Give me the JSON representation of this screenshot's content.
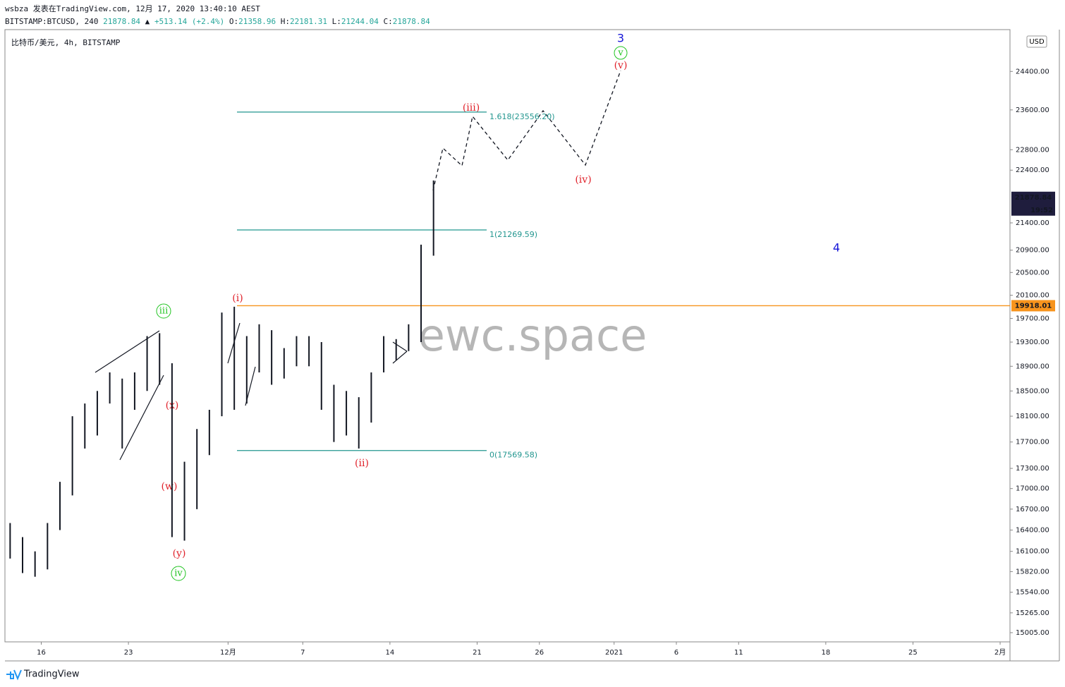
{
  "chart_data": {
    "type": "range-bar",
    "header": "wsbza 发表在TradingView.com, 12月 17, 2020 13:40:10 AEST",
    "ohlc_line": [
      "BITSTAMP:BTCUSD, 240 ",
      "21878.84",
      " ▲ ",
      "+513.14 (+2.4%)",
      " O:",
      "21358.96",
      " H:",
      "22181.31",
      " L:",
      "21244.04",
      " C:",
      "21878.84"
    ],
    "symbol": "比特币/美元, 4h, BITSTAMP",
    "currency": "USD",
    "watermark": "ewc.space",
    "footer": "TradingView",
    "color": "#131722",
    "log_scale": true,
    "x": [
      "2020-11-13",
      "2020-11-14",
      "2020-11-15",
      "2020-11-16",
      "2020-11-17",
      "2020-11-18",
      "2020-11-19",
      "2020-11-20",
      "2020-11-21",
      "2020-11-22",
      "2020-11-23",
      "2020-11-24",
      "2020-11-25",
      "2020-11-26",
      "2020-11-27",
      "2020-11-28",
      "2020-11-29",
      "2020-11-30",
      "2020-12-01",
      "2020-12-02",
      "2020-12-03",
      "2020-12-04",
      "2020-12-05",
      "2020-12-06",
      "2020-12-07",
      "2020-12-08",
      "2020-12-09",
      "2020-12-10",
      "2020-12-11",
      "2020-12-12",
      "2020-12-13",
      "2020-12-14",
      "2020-12-15",
      "2020-12-16",
      "2020-12-17"
    ],
    "high": [
      16500,
      16300,
      16100,
      16500,
      17100,
      18100,
      18300,
      18500,
      18800,
      18700,
      18800,
      19400,
      19450,
      18950,
      17400,
      17900,
      18200,
      19800,
      19900,
      19400,
      19600,
      19500,
      19200,
      19400,
      19400,
      19300,
      18600,
      18500,
      18400,
      18800,
      19400,
      19350,
      19600,
      21000,
      22200
    ],
    "low": [
      16000,
      15800,
      15750,
      15850,
      16400,
      16900,
      17600,
      17800,
      18300,
      17600,
      18200,
      18500,
      18600,
      16300,
      16250,
      16700,
      17500,
      18100,
      18200,
      18300,
      18800,
      18600,
      18700,
      18900,
      18900,
      18200,
      17700,
      17800,
      17600,
      18000,
      18800,
      19000,
      19150,
      19300,
      20800
    ],
    "xlim": [
      "2020-11-13T02:00",
      "2021-02-01T19:00"
    ],
    "xticks": [
      {
        "value": "2020-11-16",
        "label": "16"
      },
      {
        "value": "2020-11-23",
        "label": "23"
      },
      {
        "value": "2020-12-01",
        "label": "12月"
      },
      {
        "value": "2020-12-07",
        "label": "7"
      },
      {
        "value": "2020-12-14",
        "label": "14"
      },
      {
        "value": "2020-12-21",
        "label": "21"
      },
      {
        "value": "2020-12-26",
        "label": "26"
      },
      {
        "value": "2021-01-01",
        "label": "2021"
      },
      {
        "value": "2021-01-06",
        "label": "6"
      },
      {
        "value": "2021-01-11",
        "label": "11"
      },
      {
        "value": "2021-01-18",
        "label": "18"
      },
      {
        "value": "2021-01-25",
        "label": "25"
      },
      {
        "value": "2021-02-01",
        "label": "2月"
      }
    ],
    "ylim": [
      14886,
      25300
    ],
    "yticks": [
      {
        "value": 24400,
        "label": "24400.00"
      },
      {
        "value": 23600,
        "label": "23600.00"
      },
      {
        "value": 22800,
        "label": "22800.00"
      },
      {
        "value": 22400,
        "label": "22400.00"
      },
      {
        "value": 21400,
        "label": "21400.00"
      },
      {
        "value": 20900,
        "label": "20900.00"
      },
      {
        "value": 20500,
        "label": "20500.00"
      },
      {
        "value": 20100,
        "label": "20100.00"
      },
      {
        "value": 19700,
        "label": "19700.00"
      },
      {
        "value": 19300,
        "label": "19300.00"
      },
      {
        "value": 18900,
        "label": "18900.00"
      },
      {
        "value": 18500,
        "label": "18500.00"
      },
      {
        "value": 18100,
        "label": "18100.00"
      },
      {
        "value": 17700,
        "label": "17700.00"
      },
      {
        "value": 17300,
        "label": "17300.00"
      },
      {
        "value": 17000,
        "label": "17000.00"
      },
      {
        "value": 16700,
        "label": "16700.00"
      },
      {
        "value": 16400,
        "label": "16400.00"
      },
      {
        "value": 16100,
        "label": "16100.00"
      },
      {
        "value": 15820,
        "label": "15820.00"
      },
      {
        "value": 15540,
        "label": "15540.00"
      },
      {
        "value": 15265,
        "label": "15265.00"
      },
      {
        "value": 15005,
        "label": "15005.00"
      }
    ],
    "fib_color": "#22968f",
    "fib_levels": [
      {
        "value": 23556.2,
        "label": "1.618(23556.20)"
      },
      {
        "value": 21269.59,
        "label": "1(21269.59)"
      },
      {
        "value": 17569.58,
        "label": "0(17569.58)"
      }
    ],
    "level": 19918.01,
    "level_color": "#f7941d",
    "last_price": 21878.84,
    "countdown": "19:52",
    "wave_labels": [
      "3",
      "v",
      "(v)",
      "(iii)",
      "(iv)",
      "4",
      "(i)",
      "iii",
      "(x)",
      "(w)",
      "(y)",
      "iv",
      "(ii)"
    ]
  }
}
